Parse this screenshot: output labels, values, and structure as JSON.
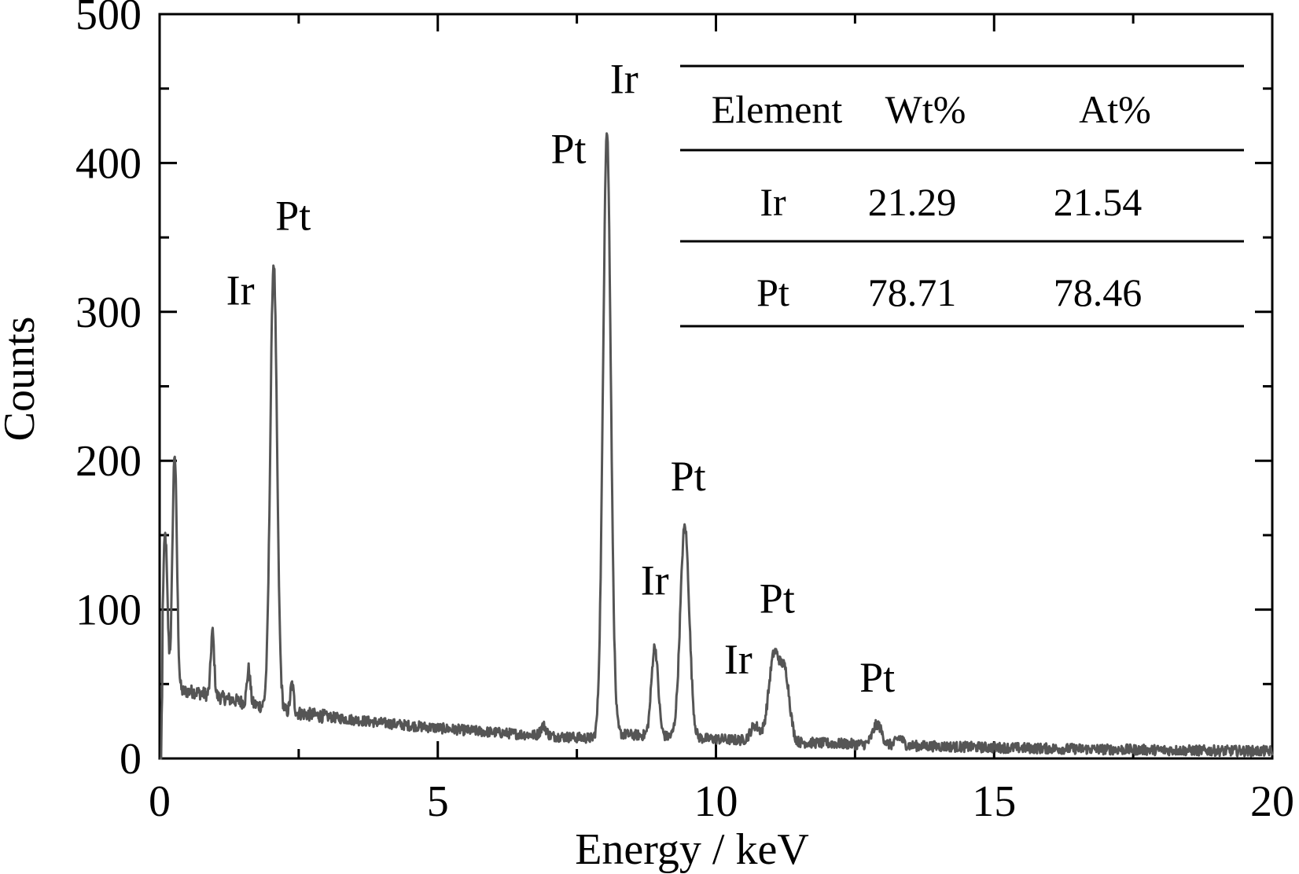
{
  "chart_data": {
    "type": "line",
    "xlabel": "Energy / keV",
    "ylabel": "Counts",
    "xlim": [
      0,
      20
    ],
    "ylim": [
      0,
      500
    ],
    "x_ticks": [
      0,
      5,
      10,
      15,
      20
    ],
    "y_ticks": [
      0,
      100,
      200,
      300,
      400,
      500
    ],
    "grid": false,
    "line_color": "#555555",
    "series": [
      {
        "peaks": [
          {
            "x": 0.1,
            "y": 150
          },
          {
            "x": 0.27,
            "y": 205
          },
          {
            "x": 0.95,
            "y": 85
          },
          {
            "x": 1.6,
            "y": 60
          },
          {
            "x": 2.05,
            "y": 333
          },
          {
            "x": 2.38,
            "y": 50
          },
          {
            "x": 6.9,
            "y": 22
          },
          {
            "x": 8.04,
            "y": 421
          },
          {
            "x": 8.9,
            "y": 75
          },
          {
            "x": 9.44,
            "y": 156
          },
          {
            "x": 10.7,
            "y": 22
          },
          {
            "x": 11.05,
            "y": 70
          },
          {
            "x": 11.25,
            "y": 52
          },
          {
            "x": 12.9,
            "y": 23
          },
          {
            "x": 13.3,
            "y": 14
          }
        ]
      }
    ],
    "annotations": [
      {
        "text": "Ir",
        "x": 1.45,
        "y": 305
      },
      {
        "text": "Pt",
        "x": 2.4,
        "y": 355
      },
      {
        "text": "Pt",
        "x": 7.35,
        "y": 400
      },
      {
        "text": "Ir",
        "x": 8.35,
        "y": 447
      },
      {
        "text": "Ir",
        "x": 8.9,
        "y": 110
      },
      {
        "text": "Pt",
        "x": 9.5,
        "y": 180
      },
      {
        "text": "Ir",
        "x": 10.4,
        "y": 57
      },
      {
        "text": "Pt",
        "x": 11.1,
        "y": 98
      },
      {
        "text": "Pt",
        "x": 12.9,
        "y": 45
      }
    ],
    "table": {
      "headers": [
        "Element",
        "Wt%",
        "At%"
      ],
      "rows": [
        [
          "Ir",
          "21.29",
          "21.54"
        ],
        [
          "Pt",
          "78.71",
          "78.46"
        ]
      ]
    }
  }
}
